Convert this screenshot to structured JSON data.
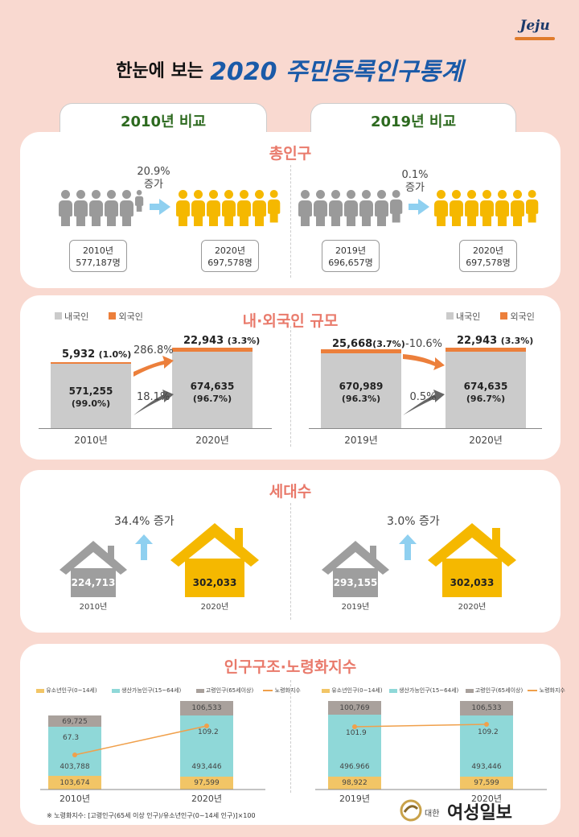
{
  "logo": "Jeju",
  "header": {
    "pre": "한눈에 보는",
    "main": "2020 주민등록인구통계"
  },
  "tabs": {
    "left": "2010년 비교",
    "right": "2019년 비교"
  },
  "sec1": {
    "title": "총인구",
    "left": {
      "pct": "20.9%",
      "word": "증가",
      "from_year": "2010년",
      "from_val": "577,187명",
      "to_year": "2020년",
      "to_val": "697,578명"
    },
    "right": {
      "pct": "0.1%",
      "word": "증가",
      "from_year": "2019년",
      "from_val": "696,657명",
      "to_year": "2020년",
      "to_val": "697,578명"
    }
  },
  "sec2": {
    "title": "내·외국인 규모",
    "legend": {
      "dom": "내국인",
      "for": "외국인"
    },
    "left": {
      "a": {
        "year": "2010년",
        "for": "5,932",
        "for_pct": "(1.0%)",
        "dom": "571,255",
        "dom_pct": "(99.0%)"
      },
      "b": {
        "year": "2020년",
        "for": "22,943",
        "for_pct": "(3.3%)",
        "dom": "674,635",
        "dom_pct": "(96.7%)"
      },
      "for_change": "286.8%",
      "dom_change": "18.1%"
    },
    "right": {
      "a": {
        "year": "2019년",
        "for": "25,668",
        "for_pct": "(3.7%)",
        "dom": "670,989",
        "dom_pct": "(96.3%)"
      },
      "b": {
        "year": "2020년",
        "for": "22,943",
        "for_pct": "(3.3%)",
        "dom": "674,635",
        "dom_pct": "(96.7%)"
      },
      "for_change": "-10.6%",
      "dom_change": "0.5%"
    }
  },
  "sec3": {
    "title": "세대수",
    "left": {
      "change": "34.4% 증가",
      "a_val": "224,713",
      "a_year": "2010년",
      "b_val": "302,033",
      "b_year": "2020년"
    },
    "right": {
      "change": "3.0% 증가",
      "a_val": "293,155",
      "a_year": "2019년",
      "b_val": "302,033",
      "b_year": "2020년"
    }
  },
  "sec4": {
    "title": "인구구조·노령화지수",
    "legend": [
      "유소년인구(0~14세)",
      "생산가능인구(15~64세)",
      "고령인구(65세이상)",
      "노령화지수"
    ],
    "colors": {
      "young": "#f2c566",
      "working": "#8fd8d8",
      "old": "#a9a19c",
      "index": "#f0a04b"
    },
    "left": {
      "a": {
        "year": "2010년",
        "young": "103,674",
        "working": "403,788",
        "old": "69,725",
        "index": "67.3"
      },
      "b": {
        "year": "2020년",
        "young": "97,599",
        "working": "493,446",
        "old": "106,533",
        "index": "109.2"
      }
    },
    "right": {
      "a": {
        "year": "2019년",
        "young": "98,922",
        "working": "496.966",
        "old": "100,769",
        "index": "101.9"
      },
      "b": {
        "year": "2020년",
        "young": "97,599",
        "working": "493,446",
        "old": "106,533",
        "index": "109.2"
      }
    },
    "note": "※ 노령화지수: [고령인구(65세 이상 인구)/유소년인구(0~14세 인구)]×100"
  },
  "brand": {
    "small": "대한",
    "name": "여성일보"
  }
}
